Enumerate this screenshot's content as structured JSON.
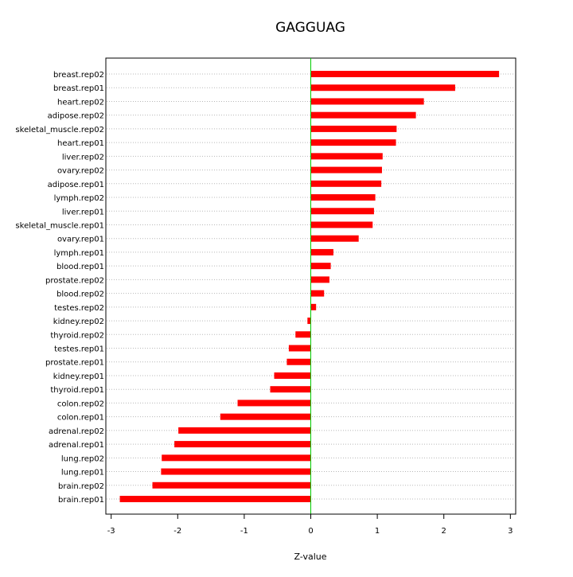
{
  "chart_data": {
    "type": "bar",
    "orientation": "horizontal",
    "title": "GAGGUAG",
    "xlabel": "Z-value",
    "ylabel": "",
    "xlim": [
      -3.08,
      3.08
    ],
    "xticks": [
      -3,
      -2,
      -1,
      0,
      1,
      2,
      3
    ],
    "x_tick_labels": [
      "-3",
      "-2",
      "-1",
      "0",
      "1",
      "2",
      "3"
    ],
    "grid": "horizontal dotted",
    "reference_line": 0,
    "categories": [
      "breast.rep02",
      "breast.rep01",
      "heart.rep02",
      "adipose.rep02",
      "skeletal_muscle.rep02",
      "heart.rep01",
      "liver.rep02",
      "ovary.rep02",
      "adipose.rep01",
      "lymph.rep02",
      "liver.rep01",
      "skeletal_muscle.rep01",
      "ovary.rep01",
      "lymph.rep01",
      "blood.rep01",
      "prostate.rep02",
      "blood.rep02",
      "testes.rep02",
      "kidney.rep02",
      "thyroid.rep02",
      "testes.rep01",
      "prostate.rep01",
      "kidney.rep01",
      "thyroid.rep01",
      "colon.rep02",
      "colon.rep01",
      "adrenal.rep02",
      "adrenal.rep01",
      "lung.rep02",
      "lung.rep01",
      "brain.rep02",
      "brain.rep01"
    ],
    "values": [
      2.83,
      2.17,
      1.7,
      1.58,
      1.29,
      1.28,
      1.08,
      1.07,
      1.06,
      0.97,
      0.95,
      0.93,
      0.72,
      0.34,
      0.3,
      0.28,
      0.2,
      0.08,
      -0.05,
      -0.23,
      -0.33,
      -0.36,
      -0.55,
      -0.61,
      -1.1,
      -1.36,
      -1.99,
      -2.05,
      -2.24,
      -2.25,
      -2.38,
      -2.87
    ],
    "colors": {
      "bar": "#ff0000",
      "zero_line": "#00cc00",
      "grid": "#b8b8b8",
      "axis": "#000000"
    }
  }
}
